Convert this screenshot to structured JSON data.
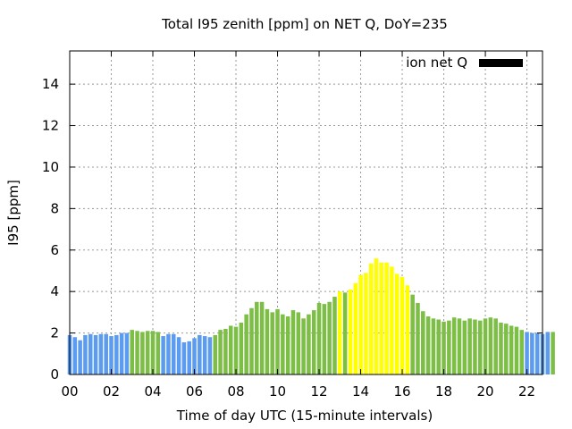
{
  "chart_data": {
    "type": "bar",
    "title": "Total I95 zenith [ppm] on NET Q, DoY=235",
    "xlabel": "Time of day UTC (15-minute intervals)",
    "ylabel": "I95 [ppm]",
    "xlim": [
      0,
      22.75
    ],
    "ylim": [
      0,
      15.6
    ],
    "x_ticks": [
      "00",
      "02",
      "04",
      "06",
      "08",
      "10",
      "12",
      "14",
      "16",
      "18",
      "20",
      "22"
    ],
    "y_ticks": [
      "0",
      "2",
      "4",
      "6",
      "8",
      "10",
      "12",
      "14"
    ],
    "grid": true,
    "legend": {
      "label": "ion net Q",
      "color": "#000000",
      "placement": "top-right"
    },
    "colors": {
      "blue": "#5b9cf0",
      "green": "#7dbf46",
      "yellow": "#ffff00"
    },
    "interval_hours": 0.25,
    "values": [
      1.9,
      1.8,
      1.65,
      1.9,
      1.95,
      1.9,
      1.95,
      1.95,
      1.85,
      1.9,
      2.0,
      2.0,
      2.15,
      2.1,
      2.05,
      2.1,
      2.1,
      2.05,
      1.85,
      1.95,
      1.95,
      1.8,
      1.55,
      1.6,
      1.75,
      1.9,
      1.85,
      1.8,
      1.9,
      2.15,
      2.2,
      2.35,
      2.3,
      2.5,
      2.9,
      3.2,
      3.5,
      3.5,
      3.15,
      3.0,
      3.15,
      2.9,
      2.8,
      3.1,
      3.0,
      2.7,
      2.9,
      3.1,
      3.45,
      3.4,
      3.5,
      3.75,
      4.0,
      3.95,
      4.1,
      4.4,
      4.8,
      4.9,
      5.35,
      5.6,
      5.4,
      5.4,
      5.2,
      4.85,
      4.7,
      4.3,
      3.85,
      3.45,
      3.05,
      2.8,
      2.7,
      2.65,
      2.55,
      2.6,
      2.75,
      2.7,
      2.6,
      2.7,
      2.65,
      2.6,
      2.7,
      2.75,
      2.7,
      2.5,
      2.45,
      2.35,
      2.3,
      2.15,
      2.05,
      2.0,
      2.0,
      1.95,
      2.05,
      2.05
    ],
    "bar_colors": [
      "blue",
      "blue",
      "blue",
      "blue",
      "blue",
      "blue",
      "blue",
      "blue",
      "blue",
      "blue",
      "blue",
      "blue",
      "green",
      "green",
      "green",
      "green",
      "green",
      "green",
      "blue",
      "blue",
      "blue",
      "blue",
      "blue",
      "blue",
      "blue",
      "blue",
      "blue",
      "blue",
      "green",
      "green",
      "green",
      "green",
      "green",
      "green",
      "green",
      "green",
      "green",
      "green",
      "green",
      "green",
      "green",
      "green",
      "green",
      "green",
      "green",
      "green",
      "green",
      "green",
      "green",
      "green",
      "green",
      "green",
      "yellow",
      "green",
      "yellow",
      "yellow",
      "yellow",
      "yellow",
      "yellow",
      "yellow",
      "yellow",
      "yellow",
      "yellow",
      "yellow",
      "yellow",
      "yellow",
      "green",
      "green",
      "green",
      "green",
      "green",
      "green",
      "green",
      "green",
      "green",
      "green",
      "green",
      "green",
      "green",
      "green",
      "green",
      "green",
      "green",
      "green",
      "green",
      "green",
      "green",
      "green",
      "blue",
      "blue",
      "blue",
      "blue",
      "blue",
      "green"
    ]
  }
}
